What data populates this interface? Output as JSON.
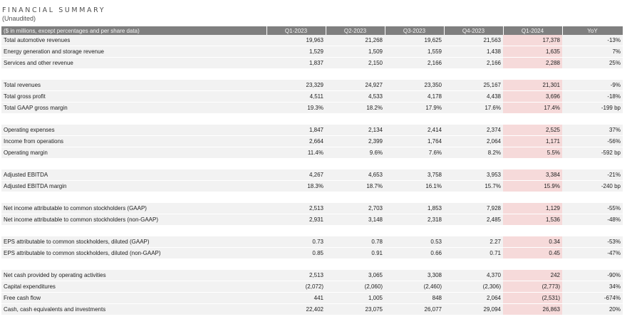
{
  "header": {
    "title": "FINANCIAL SUMMARY",
    "subtitle": "(Unaudited)"
  },
  "colors": {
    "header_bg": "#7f7f7f",
    "row_bg": "#f2f2f2",
    "highlight_bg": "#f6dada"
  },
  "table": {
    "columns": [
      "($ in millions, except percentages and per share data)",
      "Q1-2023",
      "Q2-2023",
      "Q3-2023",
      "Q4-2023",
      "Q1-2024",
      "YoY"
    ],
    "groups": [
      {
        "rows": [
          {
            "label": "Total automotive revenues",
            "values": [
              "19,963",
              "21,268",
              "19,625",
              "21,563",
              "17,378",
              "-13%"
            ]
          },
          {
            "label": "Energy generation and storage revenue",
            "values": [
              "1,529",
              "1,509",
              "1,559",
              "1,438",
              "1,635",
              "7%"
            ]
          },
          {
            "label": "Services and other revenue",
            "values": [
              "1,837",
              "2,150",
              "2,166",
              "2,166",
              "2,288",
              "25%"
            ]
          }
        ]
      },
      {
        "rows": [
          {
            "label": "Total revenues",
            "values": [
              "23,329",
              "24,927",
              "23,350",
              "25,167",
              "21,301",
              "-9%"
            ]
          },
          {
            "label": "Total gross profit",
            "values": [
              "4,511",
              "4,533",
              "4,178",
              "4,438",
              "3,696",
              "-18%"
            ]
          },
          {
            "label": "Total GAAP gross margin",
            "values": [
              "19.3%",
              "18.2%",
              "17.9%",
              "17.6%",
              "17.4%",
              "-199 bp"
            ]
          }
        ]
      },
      {
        "rows": [
          {
            "label": "Operating expenses",
            "values": [
              "1,847",
              "2,134",
              "2,414",
              "2,374",
              "2,525",
              "37%"
            ]
          },
          {
            "label": "Income from operations",
            "values": [
              "2,664",
              "2,399",
              "1,764",
              "2,064",
              "1,171",
              "-56%"
            ]
          },
          {
            "label": "Operating margin",
            "values": [
              "11.4%",
              "9.6%",
              "7.6%",
              "8.2%",
              "5.5%",
              "-592 bp"
            ]
          }
        ]
      },
      {
        "rows": [
          {
            "label": "Adjusted EBITDA",
            "values": [
              "4,267",
              "4,653",
              "3,758",
              "3,953",
              "3,384",
              "-21%"
            ]
          },
          {
            "label": "Adjusted EBITDA margin",
            "values": [
              "18.3%",
              "18.7%",
              "16.1%",
              "15.7%",
              "15.9%",
              "-240 bp"
            ]
          }
        ]
      },
      {
        "rows": [
          {
            "label": "Net income attributable to common stockholders (GAAP)",
            "values": [
              "2,513",
              "2,703",
              "1,853",
              "7,928",
              "1,129",
              "-55%"
            ]
          },
          {
            "label": "Net income attributable to common stockholders (non-GAAP)",
            "values": [
              "2,931",
              "3,148",
              "2,318",
              "2,485",
              "1,536",
              "-48%"
            ]
          }
        ]
      },
      {
        "rows": [
          {
            "label": "EPS attributable to common stockholders, diluted (GAAP)",
            "values": [
              "0.73",
              "0.78",
              "0.53",
              "2.27",
              "0.34",
              "-53%"
            ]
          },
          {
            "label": "EPS attributable to common stockholders, diluted (non-GAAP)",
            "values": [
              "0.85",
              "0.91",
              "0.66",
              "0.71",
              "0.45",
              "-47%"
            ]
          }
        ]
      },
      {
        "rows": [
          {
            "label": "Net cash provided by operating activities",
            "values": [
              "2,513",
              "3,065",
              "3,308",
              "4,370",
              "242",
              "-90%"
            ]
          },
          {
            "label": "Capital expenditures",
            "values": [
              "(2,072)",
              "(2,060)",
              "(2,460)",
              "(2,306)",
              "(2,773)",
              "34%"
            ]
          },
          {
            "label": "Free cash flow",
            "values": [
              "441",
              "1,005",
              "848",
              "2,064",
              "(2,531)",
              "-674%"
            ]
          },
          {
            "label": "Cash, cash equivalents and investments",
            "values": [
              "22,402",
              "23,075",
              "26,077",
              "29,094",
              "26,863",
              "20%"
            ]
          }
        ]
      }
    ]
  }
}
